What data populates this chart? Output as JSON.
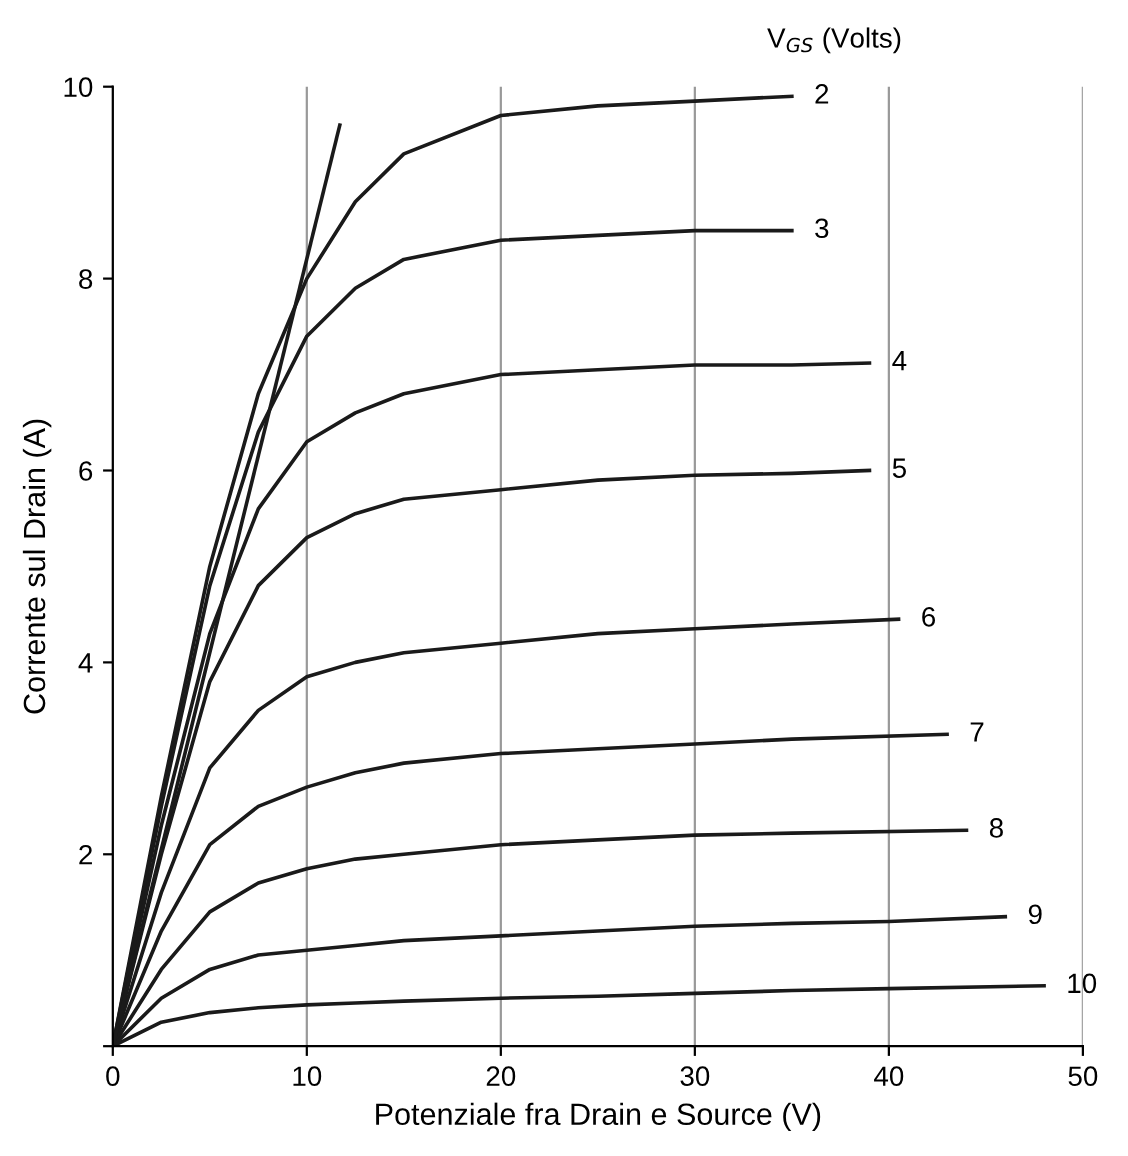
{
  "chart_data": {
    "type": "line",
    "xlabel": "Potenziale fra Drain e Source (V)",
    "ylabel": "Corrente sul Drain (A)",
    "annotations": [
      "V$_{GS}$ (Volts)"
    ],
    "xlim": [
      0,
      50
    ],
    "ylim": [
      0,
      10
    ],
    "xticks": [
      0,
      10,
      20,
      30,
      40,
      50
    ],
    "yticks": [
      {
        "value": 0,
        "label": null
      },
      2,
      4,
      6,
      8,
      10
    ],
    "grid": "x",
    "legend": false,
    "marker": "none",
    "line_style": "solid",
    "series": [
      {
        "name": "2",
        "color": "#1a1a1a",
        "x": [
          0,
          2.5,
          5,
          7.5,
          10,
          12.5,
          15,
          20,
          25,
          30,
          35
        ],
        "values": [
          0,
          2.6,
          5.0,
          6.8,
          8.0,
          8.8,
          9.3,
          9.7,
          9.8,
          9.85,
          9.9
        ]
      },
      {
        "name": "3",
        "color": "#1a1a1a",
        "x": [
          0,
          2.5,
          5,
          7.5,
          10,
          12.5,
          15,
          20,
          25,
          30,
          35
        ],
        "values": [
          0,
          2.5,
          4.8,
          6.4,
          7.4,
          7.9,
          8.2,
          8.4,
          8.45,
          8.5,
          8.5
        ]
      },
      {
        "name": "4",
        "color": "#1a1a1a",
        "x": [
          0,
          2.5,
          5,
          7.5,
          10,
          12.5,
          15,
          20,
          25,
          30,
          35,
          39
        ],
        "values": [
          0,
          2.3,
          4.3,
          5.6,
          6.3,
          6.6,
          6.8,
          7.0,
          7.05,
          7.1,
          7.1,
          7.12
        ]
      },
      {
        "name": "5",
        "color": "#1a1a1a",
        "x": [
          0,
          2.5,
          5,
          7.5,
          10,
          12.5,
          15,
          20,
          25,
          30,
          35,
          39
        ],
        "values": [
          0,
          2.0,
          3.8,
          4.8,
          5.3,
          5.55,
          5.7,
          5.8,
          5.9,
          5.95,
          5.97,
          6.0
        ]
      },
      {
        "name": "6",
        "color": "#1a1a1a",
        "x": [
          0,
          2.5,
          5,
          7.5,
          10,
          12.5,
          15,
          20,
          25,
          30,
          35,
          40.5
        ],
        "values": [
          0,
          1.6,
          2.9,
          3.5,
          3.85,
          4.0,
          4.1,
          4.2,
          4.3,
          4.35,
          4.4,
          4.45
        ]
      },
      {
        "name": "7",
        "color": "#1a1a1a",
        "x": [
          0,
          2.5,
          5,
          7.5,
          10,
          12.5,
          15,
          20,
          25,
          30,
          35,
          43
        ],
        "values": [
          0,
          1.2,
          2.1,
          2.5,
          2.7,
          2.85,
          2.95,
          3.05,
          3.1,
          3.15,
          3.2,
          3.25
        ]
      },
      {
        "name": "8",
        "color": "#1a1a1a",
        "x": [
          0,
          2.5,
          5,
          7.5,
          10,
          12.5,
          15,
          20,
          25,
          30,
          35,
          44
        ],
        "values": [
          0,
          0.8,
          1.4,
          1.7,
          1.85,
          1.95,
          2.0,
          2.1,
          2.15,
          2.2,
          2.22,
          2.25
        ]
      },
      {
        "name": "9",
        "color": "#1a1a1a",
        "x": [
          0,
          2.5,
          5,
          7.5,
          10,
          12.5,
          15,
          20,
          25,
          30,
          35,
          40,
          46
        ],
        "values": [
          0,
          0.5,
          0.8,
          0.95,
          1.0,
          1.05,
          1.1,
          1.15,
          1.2,
          1.25,
          1.28,
          1.3,
          1.35
        ]
      },
      {
        "name": "10",
        "color": "#1a1a1a",
        "x": [
          0,
          2.5,
          5,
          7.5,
          10,
          12.5,
          15,
          20,
          25,
          30,
          35,
          40,
          48
        ],
        "values": [
          0,
          0.25,
          0.35,
          0.4,
          0.43,
          0.45,
          0.47,
          0.5,
          0.52,
          0.55,
          0.58,
          0.6,
          0.63
        ]
      },
      {
        "color": "#1a1a1a",
        "x": [
          0,
          11.7
        ],
        "values": [
          0,
          9.6
        ]
      }
    ]
  }
}
